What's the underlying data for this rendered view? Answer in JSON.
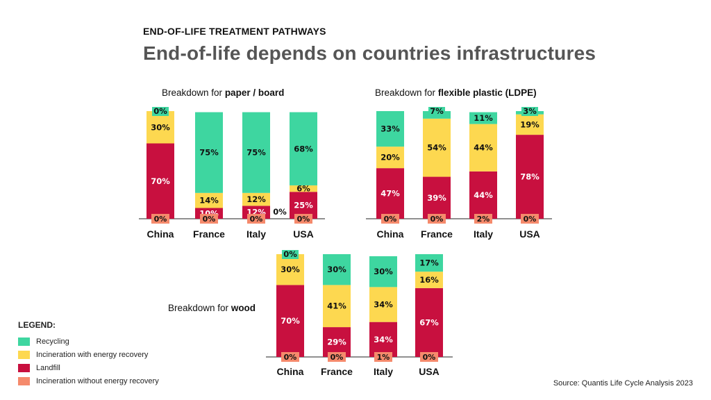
{
  "header": {
    "eyebrow": "END-OF-LIFE TREATMENT PATHWAYS",
    "title": "End-of-life depends on countries infrastructures"
  },
  "legend": {
    "title": "LEGEND:",
    "items": [
      {
        "label": "Recycling",
        "color": "#3ed6a0"
      },
      {
        "label": "Incineration with energy recovery",
        "color": "#fdd850"
      },
      {
        "label": "Landfill",
        "color": "#c8103f"
      },
      {
        "label": "Incineration without energy recovery",
        "color": "#f58a6c"
      }
    ]
  },
  "source": "Source:  Quantis Life Cycle Analysis 2023",
  "chart_data": [
    {
      "type": "bar",
      "stacked": true,
      "title_prefix": "Breakdown for",
      "title_bold": "paper / board",
      "categories": [
        "China",
        "France",
        "Italy",
        "USA"
      ],
      "series": [
        {
          "name": "Landfill",
          "values": [
            70,
            10,
            12,
            25
          ],
          "labels": [
            "70%",
            "10%",
            "12%",
            "25%"
          ]
        },
        {
          "name": "Incineration with energy recovery",
          "values": [
            30,
            14,
            12,
            6
          ],
          "labels": [
            "30%",
            "14%",
            "12%",
            "6%"
          ]
        },
        {
          "name": "Recycling",
          "values": [
            0,
            75,
            75,
            68
          ],
          "labels": [
            "0%",
            "75%",
            "75%",
            "68%"
          ]
        },
        {
          "name": "Incineration without energy recovery",
          "values": [
            0,
            0,
            0,
            0
          ],
          "labels": [
            "0%",
            "0%",
            "0%",
            "0%"
          ]
        }
      ],
      "annotations": [
        "0%"
      ]
    },
    {
      "type": "bar",
      "stacked": true,
      "title_prefix": "Breakdown for",
      "title_bold": "flexible plastic (LDPE)",
      "categories": [
        "China",
        "France",
        "Italy",
        "USA"
      ],
      "series": [
        {
          "name": "Landfill",
          "values": [
            47,
            39,
            44,
            78
          ],
          "labels": [
            "47%",
            "39%",
            "44%",
            "78%"
          ]
        },
        {
          "name": "Incineration with energy recovery",
          "values": [
            20,
            54,
            44,
            19
          ],
          "labels": [
            "20%",
            "54%",
            "44%",
            "19%"
          ]
        },
        {
          "name": "Recycling",
          "values": [
            33,
            7,
            11,
            3
          ],
          "labels": [
            "33%",
            "7%",
            "11%",
            "3%"
          ]
        },
        {
          "name": "Incineration without energy recovery",
          "values": [
            0,
            0,
            2,
            0
          ],
          "labels": [
            "0%",
            "0%",
            "2%",
            "0%"
          ]
        }
      ],
      "annotations": []
    },
    {
      "type": "bar",
      "stacked": true,
      "title_prefix": "Breakdown for",
      "title_bold": "wood",
      "categories": [
        "China",
        "France",
        "Italy",
        "USA"
      ],
      "series": [
        {
          "name": "Landfill",
          "values": [
            70,
            29,
            34,
            67
          ],
          "labels": [
            "70%",
            "29%",
            "34%",
            "67%"
          ]
        },
        {
          "name": "Incineration with energy recovery",
          "values": [
            30,
            41,
            34,
            16
          ],
          "labels": [
            "30%",
            "41%",
            "34%",
            "16%"
          ]
        },
        {
          "name": "Recycling",
          "values": [
            0,
            30,
            30,
            17
          ],
          "labels": [
            "0%",
            "30%",
            "30%",
            "17%"
          ]
        },
        {
          "name": "Incineration without energy recovery",
          "values": [
            0,
            0,
            1,
            0
          ],
          "labels": [
            "0%",
            "0%",
            "1%",
            "0%"
          ]
        }
      ],
      "annotations": []
    }
  ]
}
